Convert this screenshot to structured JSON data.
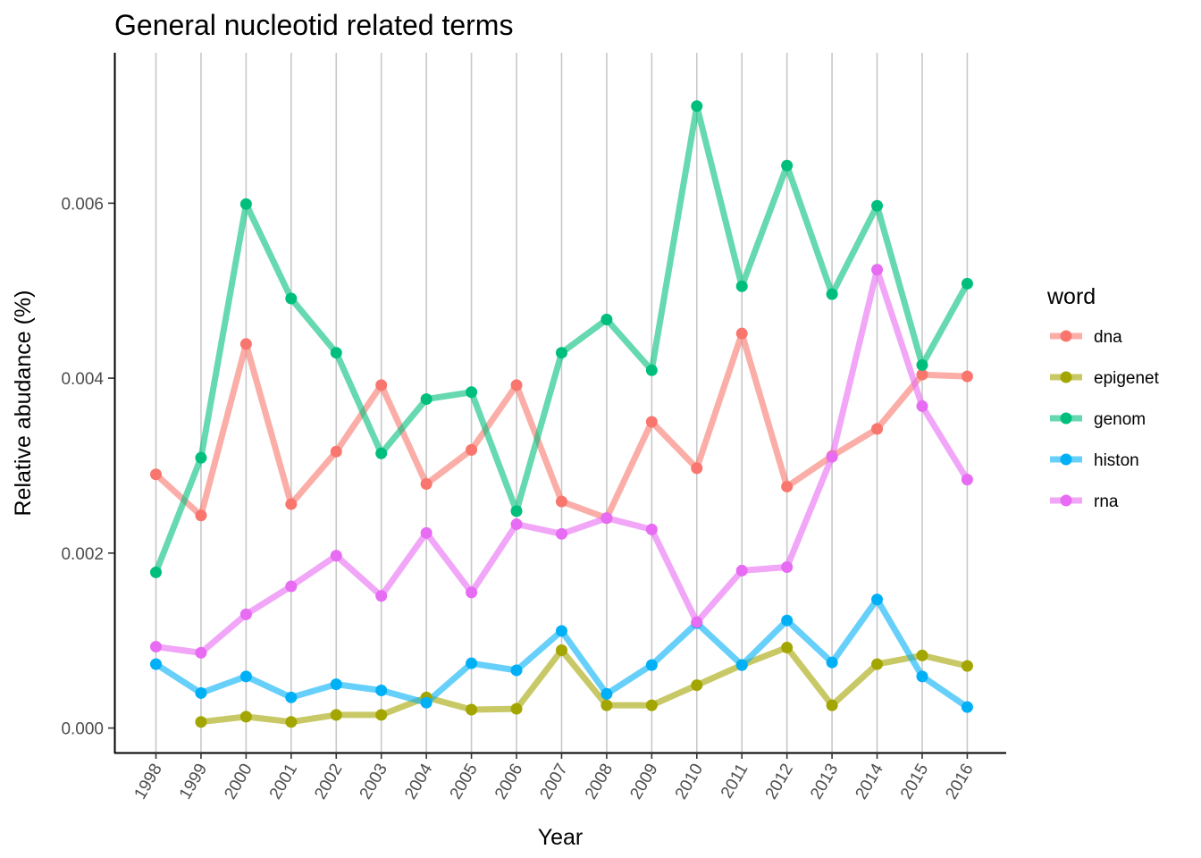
{
  "chart_data": {
    "type": "line",
    "title": "General nucleotid related terms",
    "xlabel": "Year",
    "ylabel": "Relative abudance (%)",
    "x": [
      "1998",
      "1999",
      "2000",
      "2001",
      "2002",
      "2003",
      "2004",
      "2005",
      "2006",
      "2007",
      "2008",
      "2009",
      "2010",
      "2011",
      "2012",
      "2013",
      "2014",
      "2015",
      "2016"
    ],
    "ylim": [
      -0.00028,
      0.00772
    ],
    "yticks": [
      "0.000",
      "0.002",
      "0.004",
      "0.006"
    ],
    "ytick_values": [
      0.0,
      0.002,
      0.004,
      0.006
    ],
    "grid": "vertical major gridlines only",
    "legend": {
      "title": "word",
      "position": "right"
    },
    "series": [
      {
        "name": "dna",
        "color": "#F8766D",
        "values": [
          0.0029,
          0.00243,
          0.00439,
          0.00256,
          0.00316,
          0.00392,
          0.00279,
          0.00318,
          0.00392,
          0.00259,
          0.0024,
          0.0035,
          0.00297,
          0.00451,
          0.00276,
          0.00311,
          0.00342,
          0.00404,
          0.00402
        ]
      },
      {
        "name": "epigenet",
        "color": "#A3A500",
        "values": [
          null,
          7e-05,
          0.00013,
          7e-05,
          0.00015,
          0.00015,
          0.00035,
          0.00021,
          0.00022,
          0.00089,
          0.00026,
          0.00026,
          0.00049,
          0.00072,
          0.00092,
          0.00026,
          0.00073,
          0.00083,
          0.00071
        ]
      },
      {
        "name": "genom",
        "color": "#00BF7D",
        "values": [
          0.00178,
          0.00309,
          0.00599,
          0.00491,
          0.00429,
          0.00314,
          0.00376,
          0.00384,
          0.00248,
          0.00429,
          0.00467,
          0.00409,
          0.00711,
          0.00505,
          0.00643,
          0.00496,
          0.00597,
          0.00415,
          0.00508
        ]
      },
      {
        "name": "histon",
        "color": "#00B0F6",
        "values": [
          0.00073,
          0.0004,
          0.00059,
          0.00035,
          0.0005,
          0.00043,
          0.00029,
          0.00074,
          0.00066,
          0.00111,
          0.00039,
          0.00072,
          0.0012,
          0.00072,
          0.00123,
          0.00075,
          0.00147,
          0.00059,
          0.00024
        ]
      },
      {
        "name": "rna",
        "color": "#E76BF3",
        "values": [
          0.00093,
          0.00086,
          0.0013,
          0.00162,
          0.00197,
          0.00151,
          0.00223,
          0.00155,
          0.00233,
          0.00222,
          0.0024,
          0.00227,
          0.00121,
          0.0018,
          0.00184,
          0.0031,
          0.00524,
          0.00368,
          0.00284
        ]
      }
    ]
  }
}
